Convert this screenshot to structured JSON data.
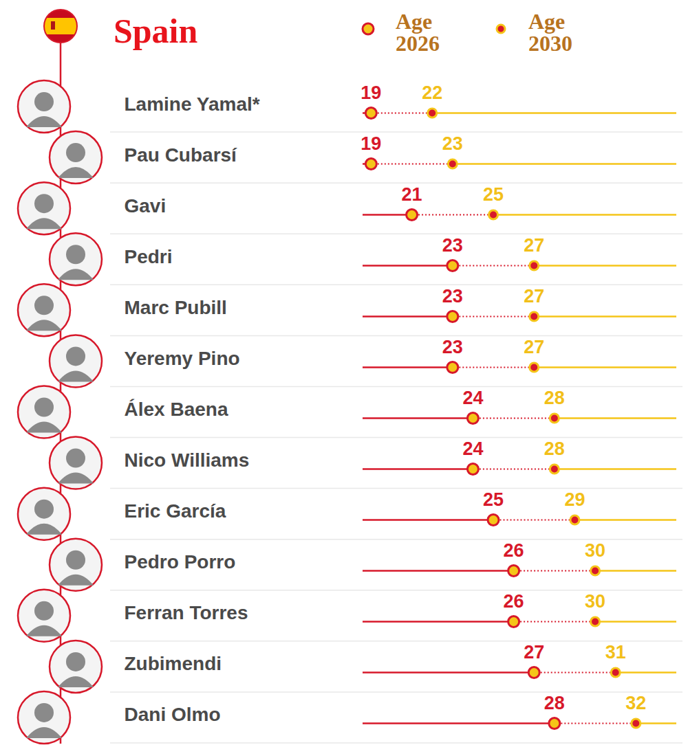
{
  "chart_data": {
    "type": "dumbbell",
    "title": "Spain",
    "orientation": "horizontal",
    "categories": [
      "Lamine Yamal*",
      "Pau Cubarsí",
      "Gavi",
      "Pedri",
      "Marc Pubill",
      "Yeremy Pino",
      "Álex Baena",
      "Nico Williams",
      "Eric García",
      "Pedro Porro",
      "Ferran Torres",
      "Zubimendi",
      "Dani Olmo"
    ],
    "series": [
      {
        "name": "Age 2026",
        "color": "#d7182a",
        "values": [
          19,
          19,
          21,
          23,
          23,
          23,
          24,
          24,
          25,
          26,
          26,
          27,
          28
        ]
      },
      {
        "name": "Age 2030",
        "color": "#f5c518",
        "values": [
          22,
          23,
          25,
          27,
          27,
          27,
          28,
          28,
          29,
          30,
          30,
          31,
          32
        ]
      }
    ],
    "xlim": [
      18.6,
      34
    ],
    "xticks": [],
    "tick_labels": false,
    "data_labels": true,
    "legend": "top"
  }
}
